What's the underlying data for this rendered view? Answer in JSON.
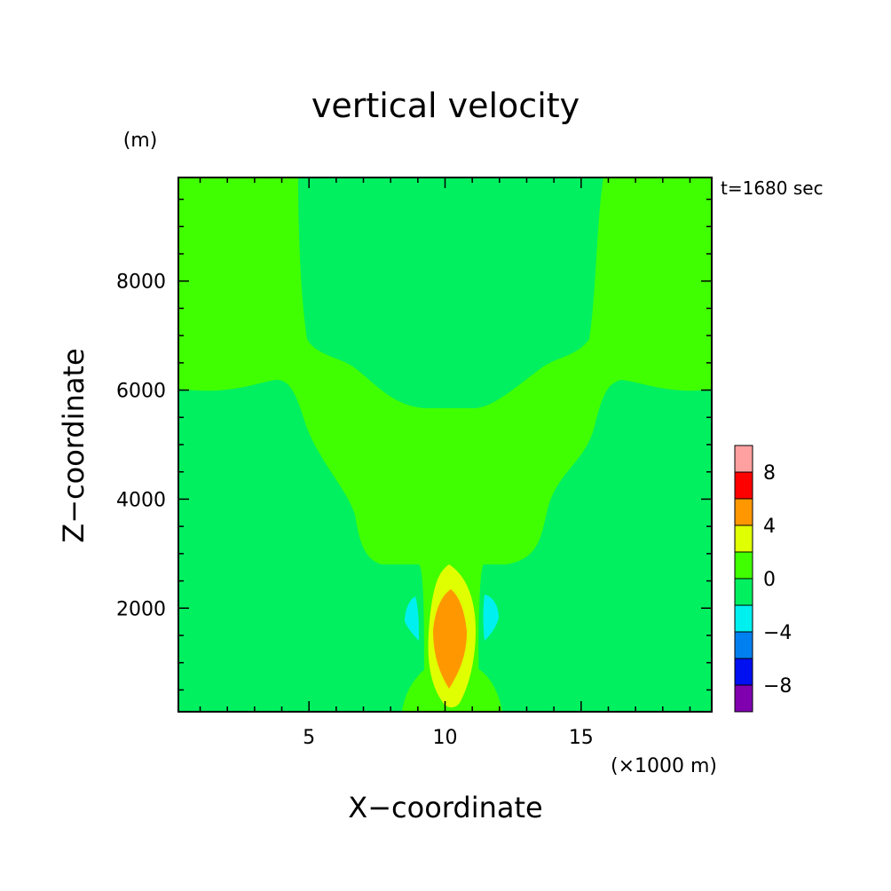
{
  "chart_data": {
    "type": "heatmap",
    "title": "vertical velocity",
    "xlabel": "X−coordinate",
    "ylabel": "Z−coordinate",
    "x_unit": "(×1000 m)",
    "y_unit": "(m)",
    "time_label": "t=1680 sec",
    "xlim": [
      0.2,
      19.8
    ],
    "ylim": [
      100,
      9900
    ],
    "x_ticks": [
      5,
      10,
      15
    ],
    "x_tick_labels": [
      "5",
      "10",
      "15"
    ],
    "y_ticks": [
      2000,
      4000,
      6000,
      8000
    ],
    "y_tick_labels": [
      "2000",
      "4000",
      "6000",
      "8000"
    ],
    "colorbar": {
      "levels": [
        -10,
        -8,
        -6,
        -4,
        -2,
        0,
        2,
        4,
        6,
        8,
        10
      ],
      "colors": [
        "#8000b0",
        "#0010f0",
        "#0080f0",
        "#00f0f0",
        "#00f060",
        "#40ff00",
        "#e0ff00",
        "#ff9800",
        "#ff0000",
        "#ffa0a0"
      ],
      "tick_labels": [
        "−8",
        "−4",
        "0",
        "4",
        "8"
      ],
      "tick_values": [
        -8,
        -4,
        0,
        4,
        8
      ]
    },
    "regions": [
      {
        "level": "0 to 2",
        "color": "#40ff00",
        "x": [
          0.2,
          4.6,
          4.9,
          5.2,
          5.5,
          5.9,
          6.3,
          6.6,
          6.8,
          7.0,
          7.8,
          9.0,
          10.0,
          11.0,
          12.1,
          12.9,
          13.2,
          13.4,
          13.7,
          14.1,
          14.5,
          14.8,
          15.1,
          15.4,
          19.8
        ],
        "z": [
          5900,
          5900,
          6050,
          6600,
          6800,
          5500,
          4800,
          4500,
          4000,
          3000,
          2800,
          2900,
          2900,
          2900,
          2800,
          3000,
          4000,
          4500,
          4800,
          5500,
          6500,
          6800,
          6300,
          5900,
          5900
        ]
      },
      {
        "level": "2 to 4",
        "color": "#e0ff00",
        "x": [
          9.1,
          9.3,
          9.6,
          10.0,
          10.3,
          10.7,
          11.0,
          11.2,
          10.9,
          10.4,
          10.0,
          9.6,
          9.2
        ],
        "z": [
          1000,
          2000,
          2600,
          2800,
          2700,
          2300,
          1800,
          1000,
          500,
          100,
          100,
          500,
          800
        ]
      },
      {
        "level": "4 to 6",
        "color": "#ff9800",
        "x": [
          9.6,
          9.8,
          10.2,
          10.6,
          10.8,
          10.6,
          10.3,
          10.0,
          9.8,
          9.6
        ],
        "z": [
          1600,
          2100,
          2300,
          2100,
          1500,
          900,
          500,
          700,
          1000,
          1300
        ]
      },
      {
        "level": "-4 to -2",
        "color": "#00f0f0",
        "x": [
          8.6,
          8.9,
          9.1,
          9.1,
          8.9,
          8.6
        ],
        "z": [
          2100,
          2350,
          2000,
          1500,
          1300,
          1800
        ]
      },
      {
        "level": "-4 to -2",
        "color": "#00f0f0",
        "x": [
          11.6,
          11.9,
          12.2,
          12.2,
          11.9,
          11.6
        ],
        "z": [
          2350,
          2300,
          2100,
          1800,
          1500,
          1300
        ]
      }
    ]
  }
}
